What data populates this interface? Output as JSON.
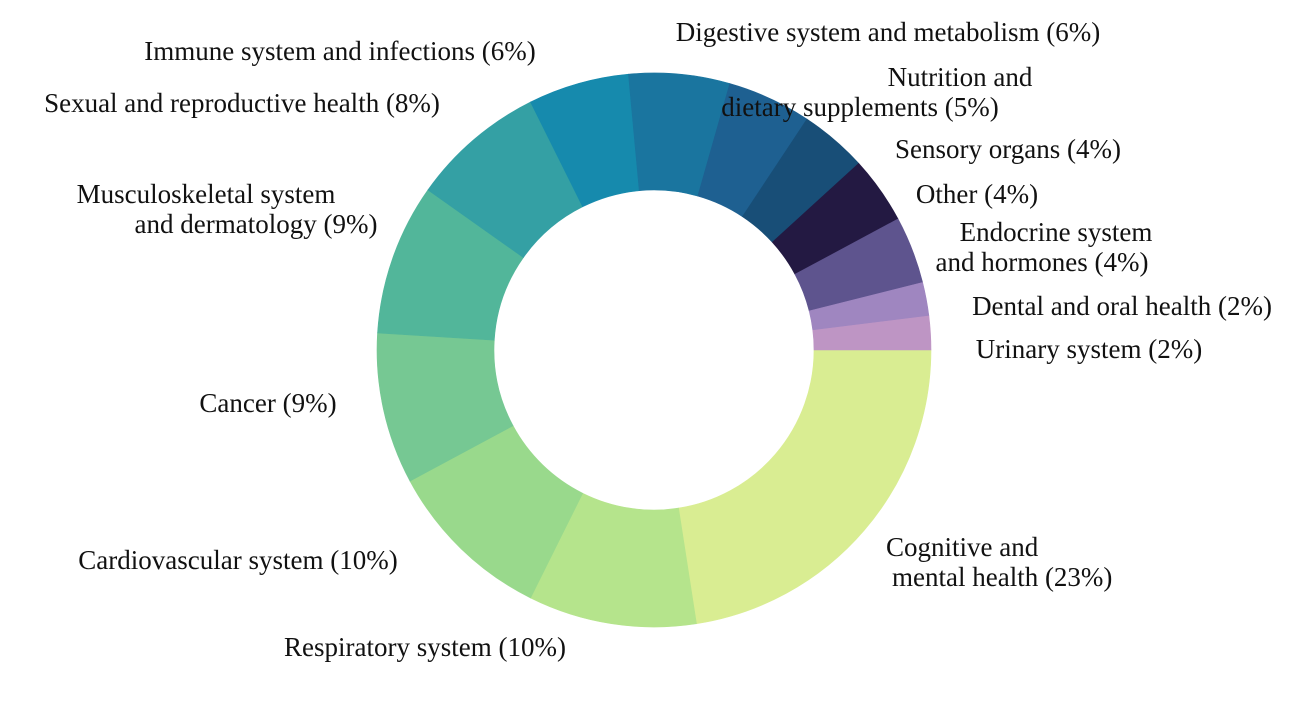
{
  "chart_data": {
    "type": "pie",
    "style": "donut",
    "title": "",
    "start_angle_note": "clockwise from the 3 o'clock position",
    "slices": [
      {
        "label_lines": [
          "Cognitive and",
          "mental health (23%)"
        ],
        "category": "Cognitive and mental health",
        "value": 23,
        "color": "#d9ed92"
      },
      {
        "label_lines": [
          "Respiratory system (10%)"
        ],
        "category": "Respiratory system",
        "value": 10,
        "color": "#b5e48c"
      },
      {
        "label_lines": [
          "Cardiovascular system (10%)"
        ],
        "category": "Cardiovascular system",
        "value": 10,
        "color": "#99d98c"
      },
      {
        "label_lines": [
          "Cancer (9%)"
        ],
        "category": "Cancer",
        "value": 9,
        "color": "#76c893"
      },
      {
        "label_lines": [
          "Musculoskeletal system",
          "and dermatology (9%)"
        ],
        "category": "Musculoskeletal system and dermatology",
        "value": 9,
        "color": "#52b69a"
      },
      {
        "label_lines": [
          "Sexual and reproductive health (8%)"
        ],
        "category": "Sexual and reproductive health",
        "value": 8,
        "color": "#34a0a4"
      },
      {
        "label_lines": [
          "Immune system and infections (6%)"
        ],
        "category": "Immune system and infections",
        "value": 6,
        "color": "#168aad"
      },
      {
        "label_lines": [
          "Digestive system and metabolism (6%)"
        ],
        "category": "Digestive system and metabolism",
        "value": 6,
        "color": "#1a759f"
      },
      {
        "label_lines": [
          "Nutrition and",
          "dietary supplements (5%)"
        ],
        "category": "Nutrition and dietary supplements",
        "value": 5,
        "color": "#1e6091"
      },
      {
        "label_lines": [
          "Sensory organs (4%)"
        ],
        "category": "Sensory organs",
        "value": 4,
        "color": "#184e77"
      },
      {
        "label_lines": [
          "Other (4%)"
        ],
        "category": "Other",
        "value": 4,
        "color": "#231942"
      },
      {
        "label_lines": [
          "Endocrine system",
          "and hormones (4%)"
        ],
        "category": "Endocrine system and hormones",
        "value": 4,
        "color": "#5e548e"
      },
      {
        "label_lines": [
          "Dental and oral health (2%)"
        ],
        "category": "Dental and oral health",
        "value": 2,
        "color": "#9f86c0"
      },
      {
        "label_lines": [
          "Urinary system (2%)"
        ],
        "category": "Urinary system",
        "value": 2,
        "color": "#be95c4"
      }
    ]
  }
}
